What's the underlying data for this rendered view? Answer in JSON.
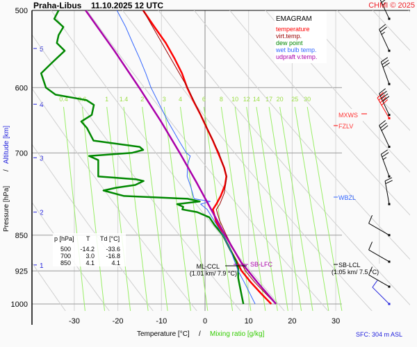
{
  "header": {
    "station": "Praha-Libus",
    "datetime": "11.10.2025 12 UTC",
    "copyright": "CHMI © 2025"
  },
  "legend": {
    "title": "EMAGRAM",
    "items": [
      {
        "label": "temperature",
        "color": "#ff0000"
      },
      {
        "label": "virt.temp.",
        "color": "#990000"
      },
      {
        "label": "dew point",
        "color": "#008800"
      },
      {
        "label": "wet bulb temp.",
        "color": "#3366ff"
      },
      {
        "label": "udpraft v.temp.",
        "color": "#aa00aa"
      }
    ]
  },
  "table": {
    "headers": [
      "p [hPa]",
      "T",
      "Td [°C]"
    ],
    "rows": [
      [
        "500",
        "-14.2",
        "-33.6"
      ],
      [
        "700",
        "3.0",
        "-16.8"
      ],
      [
        "850",
        "4.1",
        "4.1"
      ]
    ]
  },
  "levels": {
    "mxws": "MXWS",
    "fzlv": "FZLV",
    "wbzl": "WBZL",
    "sb_lfc": "SB-LFC",
    "ml_ccl": "ML-CCL",
    "ml_ccl_detail": "(1.01 km/ 7.9 °C)",
    "sb_lcl": "SB-LCL",
    "sb_lcl_detail": "(1.05 km/ 7.5 °C)"
  },
  "footer": {
    "sfc": "SFC: 304 m ASL"
  },
  "chart_data": {
    "type": "line",
    "title": "Praha-Libus 11.10.2025 12 UTC",
    "xlabel": "Temperature [°C]",
    "xlabel2": "Mixing ratio [g/kg]",
    "ylabel": "Pressure [hPa]",
    "ylabel2": "Altitude [km]",
    "xlim": [
      -38,
      48
    ],
    "ylim": [
      1000,
      500
    ],
    "x_ticks": [
      -30,
      -20,
      -10,
      0,
      10,
      20,
      30
    ],
    "y_ticks": [
      500,
      600,
      700,
      850,
      925,
      1000
    ],
    "altitude_ticks": [
      {
        "km": "1",
        "p": 912
      },
      {
        "km": "2",
        "p": 805
      },
      {
        "km": "3",
        "p": 708
      },
      {
        "km": "4",
        "p": 624
      },
      {
        "km": "5",
        "p": 547
      }
    ],
    "mixing_ratio_labels": [
      "0.4",
      "0.6",
      "1",
      "1.4",
      "2",
      "3",
      "4",
      "6",
      "8",
      "10",
      "12",
      "14",
      "17",
      "20",
      "25",
      "30"
    ],
    "mixing_ratio_values": [
      0.4,
      0.6,
      1,
      1.4,
      2,
      3,
      4,
      6,
      8,
      10,
      12,
      14,
      17,
      20,
      25,
      30
    ],
    "series": [
      {
        "name": "temperature",
        "color": "#ff0000",
        "points": [
          [
            1000,
            15.2
          ],
          [
            975,
            12.8
          ],
          [
            950,
            10.5
          ],
          [
            925,
            8.4
          ],
          [
            905,
            7.3
          ],
          [
            880,
            5.8
          ],
          [
            850,
            4.1
          ],
          [
            825,
            2.6
          ],
          [
            800,
            1.8
          ],
          [
            790,
            2.6
          ],
          [
            775,
            3.6
          ],
          [
            755,
            4.6
          ],
          [
            740,
            4.9
          ],
          [
            725,
            4.4
          ],
          [
            705,
            3.3
          ],
          [
            700,
            3.0
          ],
          [
            680,
            1.8
          ],
          [
            660,
            0.4
          ],
          [
            640,
            -1.0
          ],
          [
            620,
            -2.6
          ],
          [
            600,
            -4.1
          ],
          [
            580,
            -5.3
          ],
          [
            560,
            -7.0
          ],
          [
            540,
            -9.0
          ],
          [
            520,
            -11.6
          ],
          [
            500,
            -14.2
          ]
        ]
      },
      {
        "name": "virt.temp.",
        "color": "#990000",
        "points": [
          [
            1000,
            16.2
          ],
          [
            950,
            11.4
          ],
          [
            925,
            9.3
          ],
          [
            880,
            6.6
          ],
          [
            850,
            4.9
          ],
          [
            820,
            3.3
          ],
          [
            800,
            2.6
          ],
          [
            790,
            3.4
          ],
          [
            770,
            4.4
          ],
          [
            740,
            5.0
          ],
          [
            700,
            3.2
          ],
          [
            600,
            -4.0
          ],
          [
            500,
            -14.2
          ]
        ]
      },
      {
        "name": "dew point",
        "color": "#008800",
        "points": [
          [
            1000,
            8.8
          ],
          [
            980,
            8.4
          ],
          [
            960,
            8.0
          ],
          [
            940,
            7.6
          ],
          [
            920,
            7.6
          ],
          [
            905,
            7.2
          ],
          [
            880,
            5.8
          ],
          [
            850,
            4.1
          ],
          [
            830,
            2.2
          ],
          [
            815,
            1.0
          ],
          [
            805,
            -1.8
          ],
          [
            800,
            -5.2
          ],
          [
            795,
            -5.0
          ],
          [
            790,
            -6.4
          ],
          [
            785,
            -1.2
          ],
          [
            780,
            -4.0
          ],
          [
            775,
            -18.6
          ],
          [
            765,
            -23.3
          ],
          [
            760,
            -20.4
          ],
          [
            755,
            -16.0
          ],
          [
            748,
            -14.1
          ],
          [
            745,
            -15.8
          ],
          [
            740,
            -24.5
          ],
          [
            720,
            -24.5
          ],
          [
            712,
            -24.5
          ],
          [
            705,
            -26.6
          ],
          [
            700,
            -16.8
          ],
          [
            695,
            -14.2
          ],
          [
            690,
            -15.0
          ],
          [
            680,
            -25.6
          ],
          [
            660,
            -27.1
          ],
          [
            650,
            -28.4
          ],
          [
            640,
            -26.0
          ],
          [
            625,
            -25.5
          ],
          [
            618,
            -27.2
          ],
          [
            610,
            -34.3
          ],
          [
            600,
            -36.5
          ],
          [
            580,
            -37.6
          ],
          [
            565,
            -35.0
          ],
          [
            550,
            -32.2
          ],
          [
            540,
            -34.0
          ],
          [
            530,
            -33.6
          ],
          [
            520,
            -32.5
          ],
          [
            510,
            -34.6
          ],
          [
            500,
            -33.6
          ]
        ]
      },
      {
        "name": "wet bulb temp.",
        "color": "#3366ff",
        "points": [
          [
            1000,
            11.5
          ],
          [
            950,
            9.0
          ],
          [
            925,
            7.6
          ],
          [
            880,
            5.8
          ],
          [
            850,
            4.1
          ],
          [
            820,
            2.0
          ],
          [
            800,
            0.5
          ],
          [
            790,
            -1.0
          ],
          [
            785,
            1.2
          ],
          [
            780,
            -2.5
          ],
          [
            760,
            -3.2
          ],
          [
            740,
            -4.1
          ],
          [
            720,
            -4.0
          ],
          [
            705,
            -3.4
          ],
          [
            700,
            -4.3
          ],
          [
            680,
            -6.0
          ],
          [
            650,
            -8.5
          ],
          [
            620,
            -10.8
          ],
          [
            600,
            -12.4
          ],
          [
            580,
            -13.6
          ],
          [
            560,
            -15.0
          ],
          [
            540,
            -16.6
          ],
          [
            520,
            -18.2
          ],
          [
            500,
            -20.2
          ]
        ]
      },
      {
        "name": "udpraft v.temp.",
        "color": "#aa00aa",
        "points": [
          [
            1000,
            16.3
          ],
          [
            950,
            12.0
          ],
          [
            925,
            9.9
          ],
          [
            905,
            8.2
          ],
          [
            880,
            6.6
          ],
          [
            850,
            4.6
          ],
          [
            800,
            1.4
          ],
          [
            750,
            -2.0
          ],
          [
            700,
            -5.8
          ],
          [
            650,
            -10.1
          ],
          [
            600,
            -15.1
          ],
          [
            550,
            -20.8
          ],
          [
            500,
            -27.4
          ]
        ]
      }
    ],
    "wind_barbs": [
      {
        "p": 510,
        "dir": 335,
        "kt": 35
      },
      {
        "p": 550,
        "dir": 335,
        "kt": 25
      },
      {
        "p": 595,
        "dir": 340,
        "kt": 30
      },
      {
        "p": 640,
        "dir": 335,
        "kt": 40
      },
      {
        "p": 645,
        "dir": 330,
        "kt": 40,
        "highlight": true
      },
      {
        "p": 690,
        "dir": 335,
        "kt": 30
      },
      {
        "p": 740,
        "dir": 340,
        "kt": 25
      },
      {
        "p": 790,
        "dir": 350,
        "kt": 20
      },
      {
        "p": 850,
        "dir": 300,
        "kt": 10
      },
      {
        "p": 905,
        "dir": 300,
        "kt": 10
      },
      {
        "p": 960,
        "dir": 300,
        "kt": 10
      },
      {
        "p": 1000,
        "dir": 315,
        "kt": 10,
        "surface": true
      }
    ]
  }
}
